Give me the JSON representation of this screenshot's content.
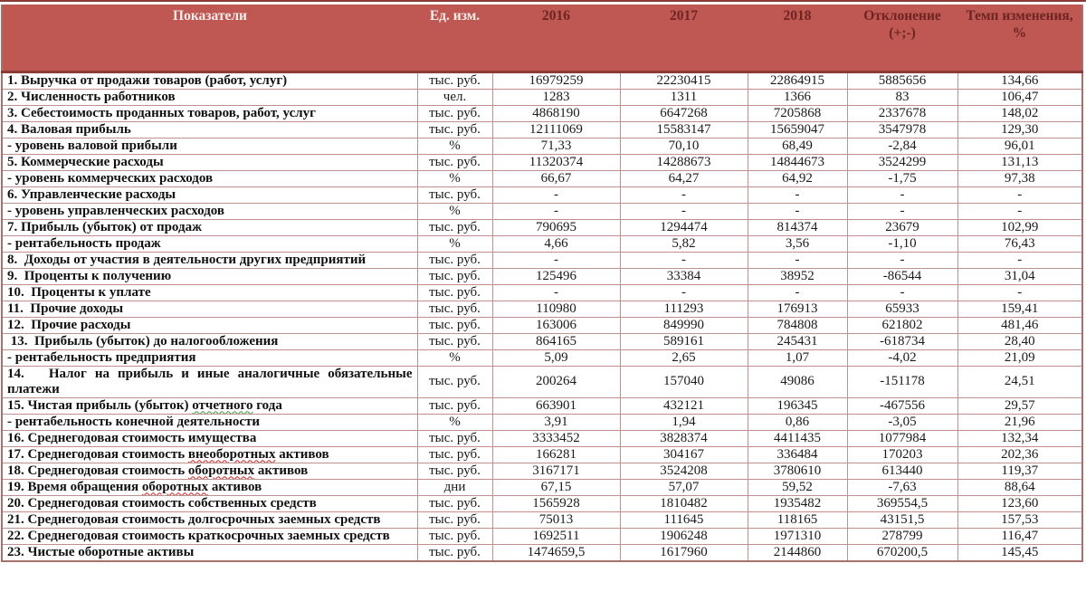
{
  "colors": {
    "header_bg": "#bf5753",
    "header_text_light": "#f2ece9",
    "header_text_dark": "#6d2422",
    "rule": "#8c3a36",
    "outer_border": "#a5716c",
    "cell_border": "#bc928f",
    "wavy_red": "#cc2222",
    "wavy_green": "#3a9a3a"
  },
  "table": {
    "columns": [
      "Показатели",
      "Ед. изм.",
      "2016",
      "2017",
      "2018",
      "Отклонение (+;-)",
      "Темп изменения, %"
    ],
    "rows": [
      {
        "label": "1. Выручка от продажи товаров (работ, услуг)",
        "unit": "тыс. руб.",
        "values": [
          "16979259",
          "22230415",
          "22864915"
        ],
        "deviation": "5885656",
        "rate": "134,66"
      },
      {
        "label": "2. Численность работников",
        "unit": "чел.",
        "values": [
          "1283",
          "1311",
          "1366"
        ],
        "deviation": "83",
        "rate": "106,47"
      },
      {
        "label": "3. Себестоимость проданных товаров, работ, услуг",
        "unit": "тыс. руб.",
        "values": [
          "4868190",
          "6647268",
          "7205868"
        ],
        "deviation": "2337678",
        "rate": "148,02"
      },
      {
        "label": "4. Валовая прибыль",
        "unit": "тыс. руб.",
        "values": [
          "12111069",
          "15583147",
          "15659047"
        ],
        "deviation": "3547978",
        "rate": "129,30"
      },
      {
        "label": "- уровень валовой прибыли",
        "unit": "%",
        "values": [
          "71,33",
          "70,10",
          "68,49"
        ],
        "deviation": "-2,84",
        "rate": "96,01"
      },
      {
        "label": "5. Коммерческие расходы",
        "unit": "тыс. руб.",
        "values": [
          "11320374",
          "14288673",
          "14844673"
        ],
        "deviation": "3524299",
        "rate": "131,13"
      },
      {
        "label": "- уровень коммерческих расходов",
        "unit": "%",
        "values": [
          "66,67",
          "64,27",
          "64,92"
        ],
        "deviation": "-1,75",
        "rate": "97,38"
      },
      {
        "label": "6. Управленческие расходы",
        "unit": "тыс. руб.",
        "values": [
          "-",
          "-",
          "-"
        ],
        "deviation": "-",
        "rate": "-"
      },
      {
        "label": "- уровень управленческих расходов",
        "unit": "%",
        "values": [
          "-",
          "-",
          "-"
        ],
        "deviation": "-",
        "rate": "-"
      },
      {
        "label": "7. Прибыль (убыток) от продаж",
        "unit": "тыс. руб.",
        "values": [
          "790695",
          "1294474",
          "814374"
        ],
        "deviation": "23679",
        "rate": "102,99"
      },
      {
        "label": "- рентабельность продаж",
        "unit": "%",
        "values": [
          "4,66",
          "5,82",
          "3,56"
        ],
        "deviation": "-1,10",
        "rate": "76,43"
      },
      {
        "label": "8.  Доходы от участия в деятельности других предприятий",
        "unit": "тыс. руб.",
        "values": [
          "-",
          "-",
          "-"
        ],
        "deviation": "-",
        "rate": "-"
      },
      {
        "label": "9.  Проценты к получению",
        "unit": "тыс. руб.",
        "values": [
          "125496",
          "33384",
          "38952"
        ],
        "deviation": "-86544",
        "rate": "31,04"
      },
      {
        "label": "10.  Проценты к уплате",
        "unit": "тыс. руб.",
        "values": [
          "-",
          "-",
          "-"
        ],
        "deviation": "-",
        "rate": "-"
      },
      {
        "label": "11.  Прочие доходы",
        "unit": "тыс. руб.",
        "values": [
          "110980",
          "111293",
          "176913"
        ],
        "deviation": "65933",
        "rate": "159,41"
      },
      {
        "label": "12.  Прочие расходы",
        "unit": "тыс. руб.",
        "values": [
          "163006",
          "849990",
          "784808"
        ],
        "deviation": "621802",
        "rate": "481,46"
      },
      {
        "label": " 13.  Прибыль (убыток) до налогообложения",
        "unit": "тыс. руб.",
        "values": [
          "864165",
          "589161",
          "245431"
        ],
        "deviation": "-618734",
        "rate": "28,40"
      },
      {
        "label": "- рентабельность предприятия",
        "unit": "%",
        "values": [
          "5,09",
          "2,65",
          "1,07"
        ],
        "deviation": "-4,02",
        "rate": "21,09"
      },
      {
        "label": "14.   Налог на прибыль и иные аналогичные обязательные платежи",
        "unit": "тыс. руб.",
        "values": [
          "200264",
          "157040",
          "49086"
        ],
        "deviation": "-151178",
        "rate": "24,51",
        "justify": true
      },
      {
        "label": "15. Чистая прибыль (убыток) отчетного года",
        "unit": "тыс. руб.",
        "values": [
          "663901",
          "432121",
          "196345"
        ],
        "deviation": "-467556",
        "rate": "29,57",
        "wavy": {
          "word": "отчетного",
          "type": "green"
        }
      },
      {
        "label": "- рентабельность конечной деятельности",
        "unit": "%",
        "values": [
          "3,91",
          "1,94",
          "0,86"
        ],
        "deviation": "-3,05",
        "rate": "21,96"
      },
      {
        "label": "16. Среднегодовая стоимость имущества",
        "unit": "тыс. руб.",
        "values": [
          "3333452",
          "3828374",
          "4411435"
        ],
        "deviation": "1077984",
        "rate": "132,34"
      },
      {
        "label": "17. Среднегодовая стоимость внеоборотных активов",
        "unit": "тыс. руб.",
        "values": [
          "166281",
          "304167",
          "336484"
        ],
        "deviation": "170203",
        "rate": "202,36",
        "wavy": {
          "word": "внеоборотных",
          "type": "red"
        }
      },
      {
        "label": "18. Среднегодовая стоимость оборотных активов",
        "unit": "тыс. руб.",
        "values": [
          "3167171",
          "3524208",
          "3780610"
        ],
        "deviation": "613440",
        "rate": "119,37",
        "wavy": {
          "word": "оборотных",
          "type": "red"
        }
      },
      {
        "label": "19. Время обращения оборотных активов",
        "unit": "дни",
        "values": [
          "67,15",
          "57,07",
          "59,52"
        ],
        "deviation": "-7,63",
        "rate": "88,64",
        "wavy": {
          "word": "оборотных",
          "type": "red"
        }
      },
      {
        "label": "20. Среднегодовая стоимость собственных средств",
        "unit": "тыс. руб.",
        "values": [
          "1565928",
          "1810482",
          "1935482"
        ],
        "deviation": "369554,5",
        "rate": "123,60"
      },
      {
        "label": "21. Среднегодовая стоимость долгосрочных заемных средств",
        "unit": "тыс. руб.",
        "values": [
          "75013",
          "111645",
          "118165"
        ],
        "deviation": "43151,5",
        "rate": "157,53"
      },
      {
        "label": "22. Среднегодовая стоимость краткосрочных заемных средств",
        "unit": "тыс. руб.",
        "values": [
          "1692511",
          "1906248",
          "1971310"
        ],
        "deviation": "278799",
        "rate": "116,47"
      },
      {
        "label": "23. Чистые оборотные активы",
        "unit": "тыс. руб.",
        "values": [
          "1474659,5",
          "1617960",
          "2144860"
        ],
        "deviation": "670200,5",
        "rate": "145,45"
      }
    ]
  }
}
